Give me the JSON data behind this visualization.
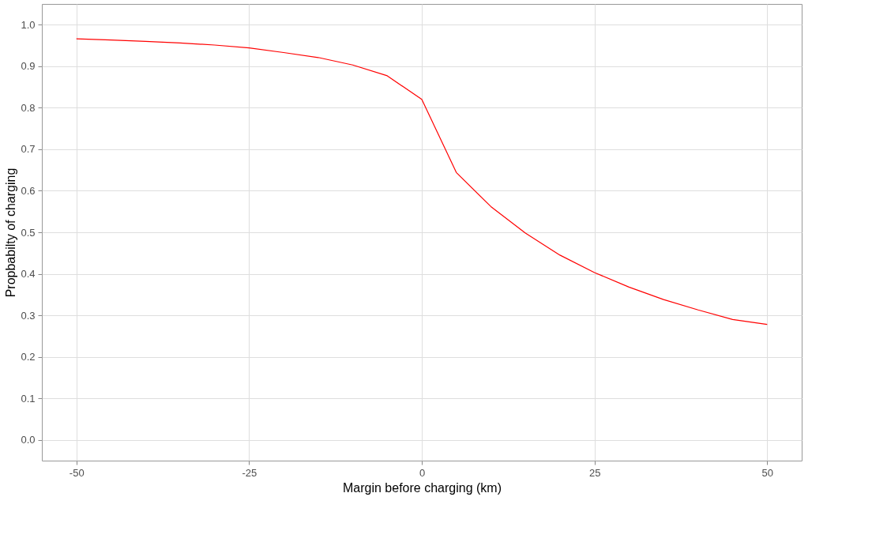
{
  "chart_data": {
    "type": "line",
    "xlabel": "Margin before charging (km)",
    "ylabel": "Propbabilty of charging",
    "x": [
      -50,
      -45,
      -40,
      -35,
      -30,
      -25,
      -20,
      -15,
      -10,
      -5,
      0,
      5,
      10,
      15,
      20,
      25,
      30,
      35,
      40,
      45,
      50
    ],
    "series": [
      {
        "color": "#ff0000",
        "values": [
          0.966,
          0.963,
          0.96,
          0.956,
          0.951,
          0.944,
          0.933,
          0.921,
          0.903,
          0.877,
          0.82,
          0.644,
          0.562,
          0.498,
          0.445,
          0.403,
          0.368,
          0.338,
          0.313,
          0.29,
          0.278
        ]
      }
    ],
    "xlim": [
      -55,
      55
    ],
    "xticks": [
      -50,
      -25,
      0,
      25,
      50
    ],
    "ylim": [
      -0.05,
      1.05
    ],
    "yticks": [
      {
        "value": 0,
        "label": "0.0"
      },
      0.1,
      0.2,
      0.3,
      0.4,
      0.5,
      0.6,
      0.7,
      0.8,
      0.9,
      {
        "value": 1,
        "label": "1.0"
      }
    ],
    "grid": true,
    "legend": false,
    "marker": "none",
    "line_style": "solid"
  }
}
